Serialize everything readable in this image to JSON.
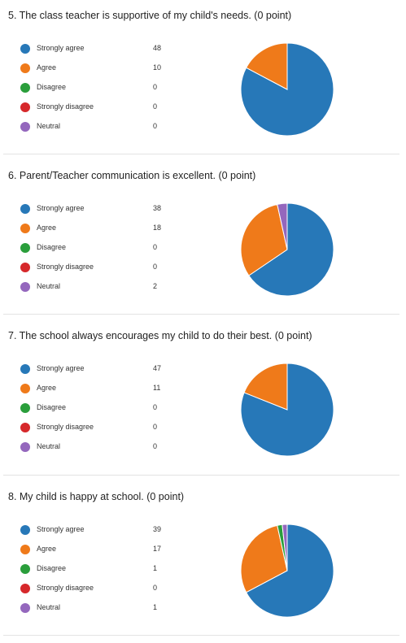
{
  "colors": {
    "Strongly agree": "#2778b8",
    "Agree": "#ef7a1a",
    "Disagree": "#2a9e3b",
    "Strongly disagree": "#d6282b",
    "Neutral": "#9467bd"
  },
  "chart_data": [
    {
      "type": "pie",
      "title": "5.  The class teacher is supportive of my child's needs. (0 point)",
      "categories": [
        "Strongly agree",
        "Agree",
        "Disagree",
        "Strongly disagree",
        "Neutral"
      ],
      "values": [
        48,
        10,
        0,
        0,
        0
      ],
      "legend": "left"
    },
    {
      "type": "pie",
      "title": "6.  Parent/Teacher communication is excellent. (0 point)",
      "categories": [
        "Strongly agree",
        "Agree",
        "Disagree",
        "Strongly disagree",
        "Neutral"
      ],
      "values": [
        38,
        18,
        0,
        0,
        2
      ],
      "legend": "left"
    },
    {
      "type": "pie",
      "title": "7.  The school always encourages my child to do their best. (0 point)",
      "categories": [
        "Strongly agree",
        "Agree",
        "Disagree",
        "Strongly disagree",
        "Neutral"
      ],
      "values": [
        47,
        11,
        0,
        0,
        0
      ],
      "legend": "left"
    },
    {
      "type": "pie",
      "title": "8.  My child is happy at school. (0 point)",
      "categories": [
        "Strongly agree",
        "Agree",
        "Disagree",
        "Strongly disagree",
        "Neutral"
      ],
      "values": [
        39,
        17,
        1,
        0,
        1
      ],
      "legend": "left"
    }
  ]
}
